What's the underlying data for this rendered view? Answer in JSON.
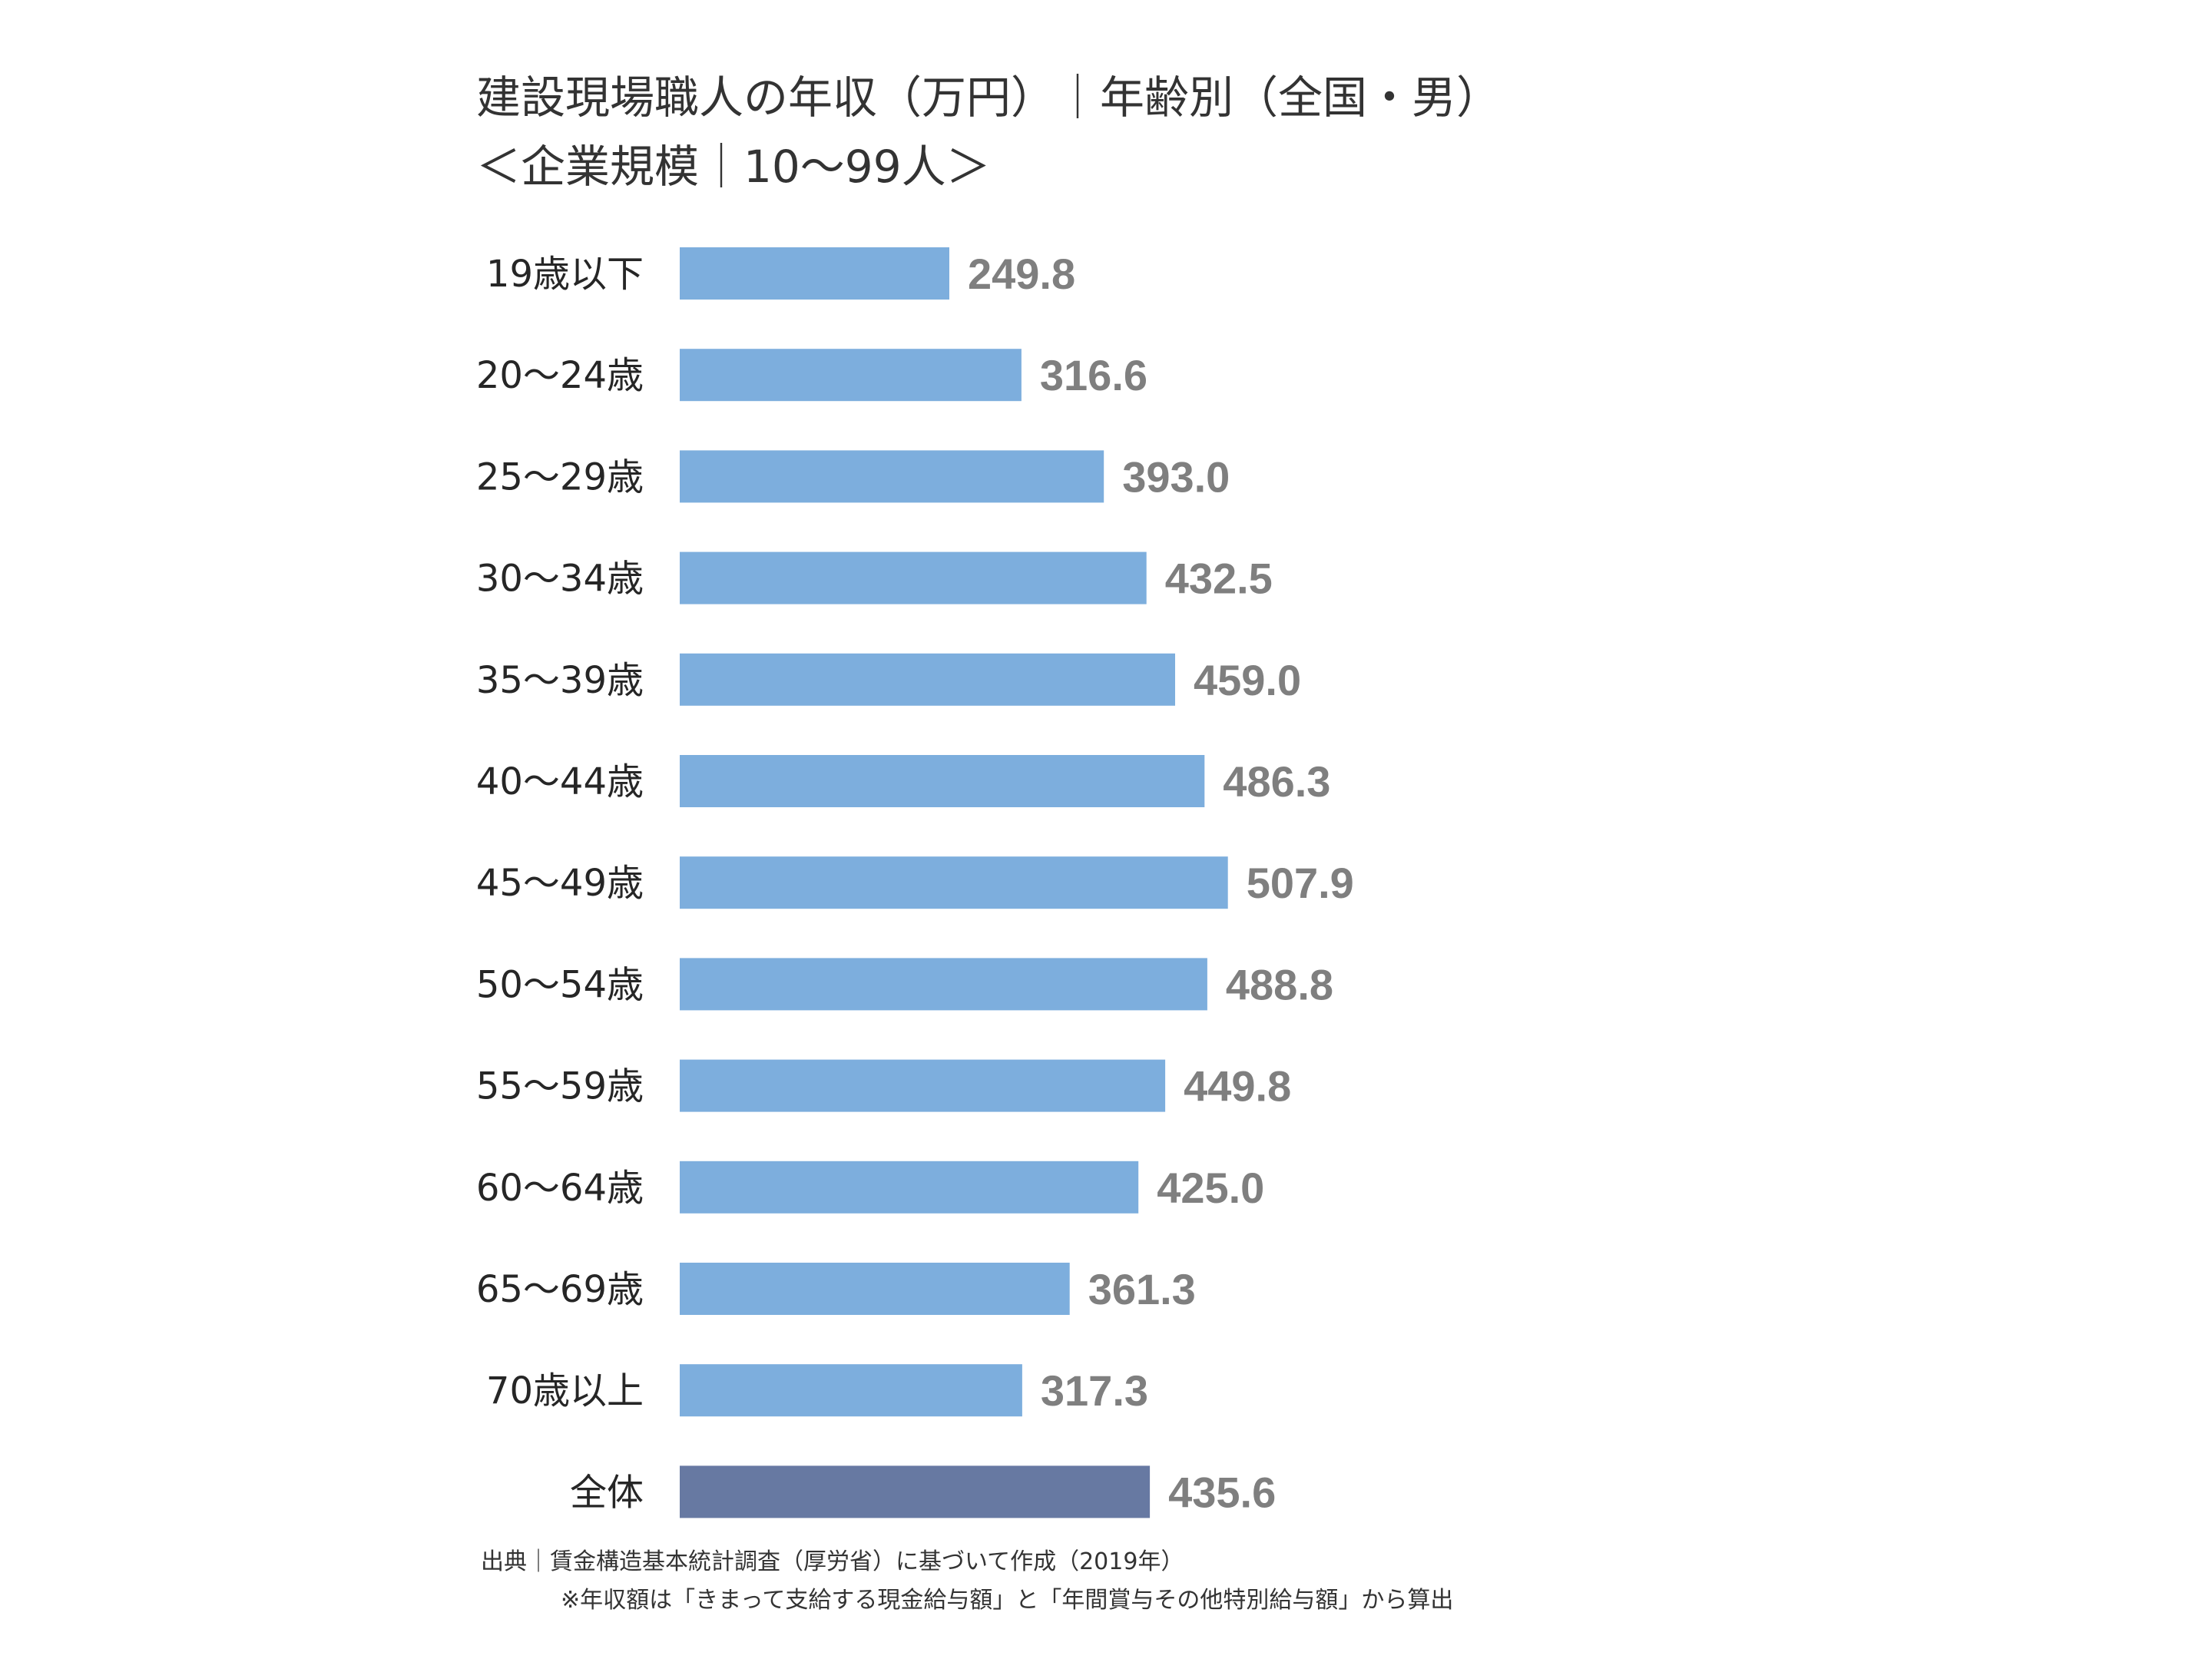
{
  "chart_data": {
    "type": "bar",
    "orientation": "horizontal",
    "title": "建設現場職人の年収（万円）｜年齢別（全国・男）",
    "subtitle": "＜企業規模｜10～99人＞",
    "categories": [
      "19歳以下",
      "20～24歳",
      "25～29歳",
      "30～34歳",
      "35～39歳",
      "40～44歳",
      "45～49歳",
      "50～54歳",
      "55～59歳",
      "60～64歳",
      "65～69歳",
      "70歳以上",
      "全体"
    ],
    "values": [
      249.8,
      316.6,
      393.0,
      432.5,
      459.0,
      486.3,
      507.9,
      488.8,
      449.8,
      425.0,
      361.3,
      317.3,
      435.6
    ],
    "value_labels": [
      "249.8",
      "316.6",
      "393.0",
      "432.5",
      "459.0",
      "486.3",
      "507.9",
      "488.8",
      "449.8",
      "425.0",
      "361.3",
      "317.3",
      "435.6"
    ],
    "xlim": [
      0,
      1000
    ],
    "grid": false,
    "colors": {
      "bar": "#7daedd",
      "bar_total": "#6779a2",
      "value_label": "#7f7f7f",
      "category_label": "#262626"
    }
  },
  "footnotes": {
    "source": "出典｜賃金構造基本統計調査（厚労省）に基づいて作成（2019年）",
    "note": "※年収額は「きまって支給する現金給与額」と「年間賞与その他特別給与額」から算出"
  }
}
